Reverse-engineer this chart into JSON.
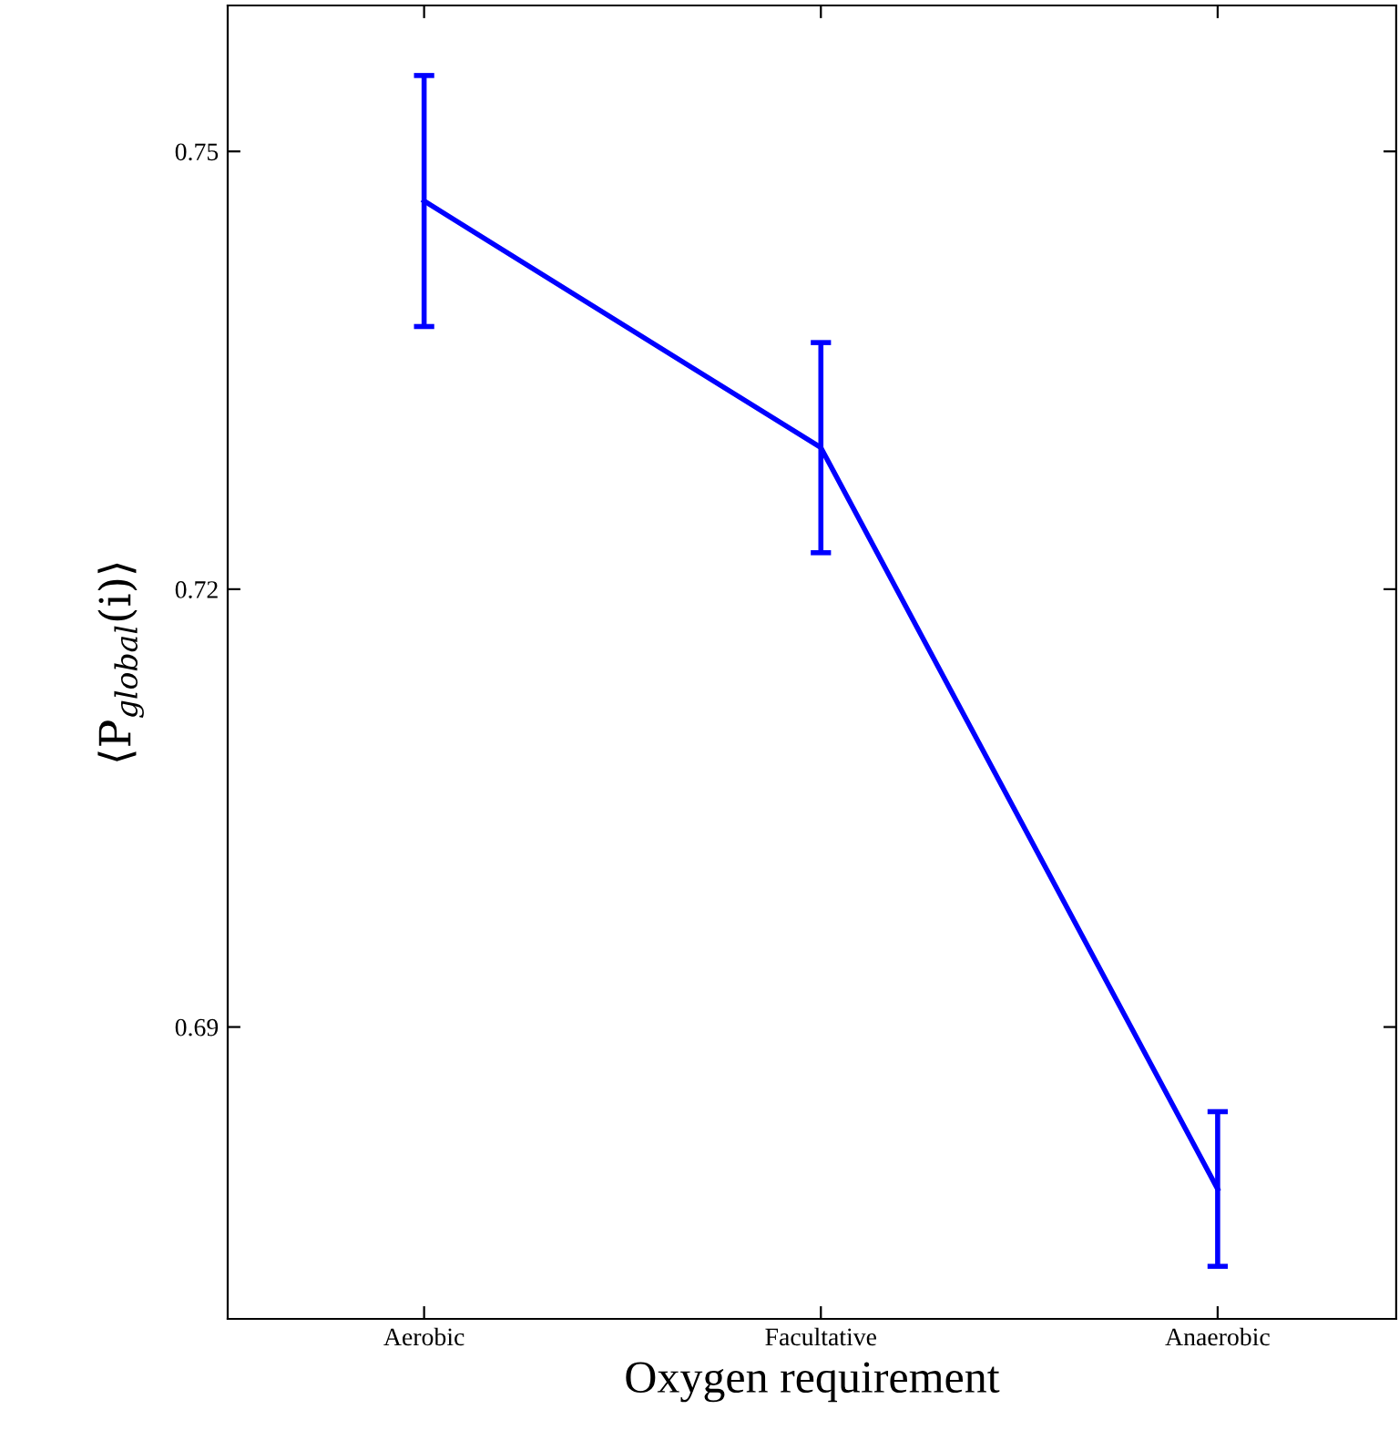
{
  "chart_data": {
    "type": "line",
    "xlabel": "Oxygen requirement",
    "ylabel": "⟨P$_{global}$(i)⟩",
    "categories": [
      "Aerobic",
      "Facultative",
      "Anaerobic"
    ],
    "series": [
      {
        "color": "#0000ff",
        "values": [
          0.7466,
          0.7297,
          0.6789
        ],
        "errors": [
          0.0086,
          0.0072,
          0.0053
        ]
      }
    ],
    "ylim": [
      0.67,
      0.76
    ],
    "yticks": [
      0.69,
      0.72,
      0.75
    ],
    "grid": false,
    "legend": false,
    "marker": "none",
    "line_style": "solid"
  }
}
